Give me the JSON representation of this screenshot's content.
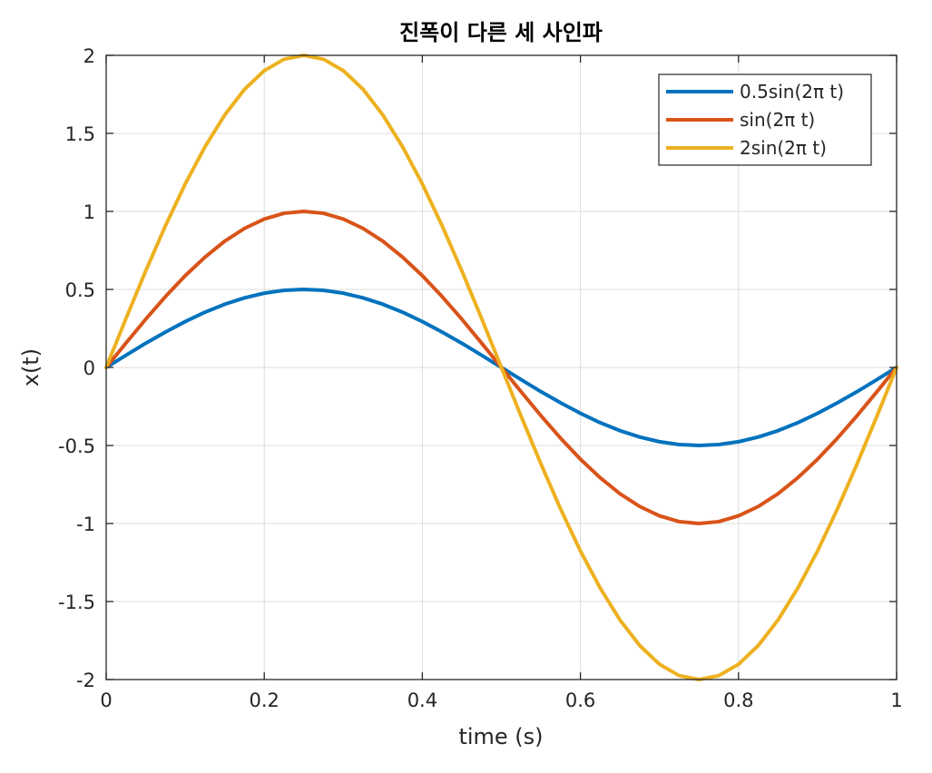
{
  "chart_data": {
    "type": "line",
    "title": "진폭이 다른 세 사인파",
    "xlabel": "time (s)",
    "ylabel": "x(t)",
    "xlim": [
      0,
      1
    ],
    "ylim": [
      -2,
      2
    ],
    "xticks": [
      0,
      0.2,
      0.4,
      0.6,
      0.8,
      1
    ],
    "xtick_labels": [
      "0",
      "0.2",
      "0.4",
      "0.6",
      "0.8",
      "1"
    ],
    "yticks": [
      2,
      1.5,
      1,
      0.5,
      0,
      -0.5,
      -1,
      -1.5,
      -2
    ],
    "ytick_labels": [
      "2",
      "1.5",
      "1",
      "0.5",
      "0",
      "-0.5",
      "-1",
      "-1.5",
      "-2"
    ],
    "grid": true,
    "legend_position": "top-right",
    "x": [
      0,
      0.025,
      0.05,
      0.075,
      0.1,
      0.125,
      0.15,
      0.175,
      0.2,
      0.225,
      0.25,
      0.275,
      0.3,
      0.325,
      0.35,
      0.375,
      0.4,
      0.425,
      0.45,
      0.475,
      0.5,
      0.525,
      0.55,
      0.575,
      0.6,
      0.625,
      0.65,
      0.675,
      0.7,
      0.725,
      0.75,
      0.775,
      0.8,
      0.825,
      0.85,
      0.875,
      0.9,
      0.925,
      0.95,
      0.975,
      1
    ],
    "series": [
      {
        "name": "0.5sin(2π t)",
        "color": "#0072BD",
        "values": [
          0,
          0.078,
          0.155,
          0.227,
          0.294,
          0.354,
          0.405,
          0.446,
          0.476,
          0.494,
          0.5,
          0.494,
          0.476,
          0.446,
          0.405,
          0.354,
          0.294,
          0.227,
          0.155,
          0.078,
          0,
          -0.078,
          -0.155,
          -0.227,
          -0.294,
          -0.354,
          -0.405,
          -0.446,
          -0.476,
          -0.494,
          -0.5,
          -0.494,
          -0.476,
          -0.446,
          -0.405,
          -0.354,
          -0.294,
          -0.227,
          -0.155,
          -0.078,
          0
        ]
      },
      {
        "name": "sin(2π t)",
        "color": "#D95319",
        "values": [
          0,
          0.156,
          0.309,
          0.454,
          0.588,
          0.707,
          0.809,
          0.891,
          0.951,
          0.988,
          1,
          0.988,
          0.951,
          0.891,
          0.809,
          0.707,
          0.588,
          0.454,
          0.309,
          0.156,
          0,
          -0.156,
          -0.309,
          -0.454,
          -0.588,
          -0.707,
          -0.809,
          -0.891,
          -0.951,
          -0.988,
          -1,
          -0.988,
          -0.951,
          -0.891,
          -0.809,
          -0.707,
          -0.588,
          -0.454,
          -0.309,
          -0.156,
          0
        ]
      },
      {
        "name": "2sin(2π t)",
        "color": "#EDB120",
        "values": [
          0,
          0.313,
          0.618,
          0.908,
          1.176,
          1.414,
          1.618,
          1.782,
          1.902,
          1.975,
          2,
          1.975,
          1.902,
          1.782,
          1.618,
          1.414,
          1.176,
          0.908,
          0.618,
          0.313,
          0,
          -0.313,
          -0.618,
          -0.908,
          -1.176,
          -1.414,
          -1.618,
          -1.782,
          -1.902,
          -1.975,
          -2,
          -1.975,
          -1.902,
          -1.782,
          -1.618,
          -1.414,
          -1.176,
          -0.908,
          -0.618,
          -0.313,
          0
        ]
      }
    ],
    "colors": {
      "axis": "#262626",
      "grid": "#dcdcdc",
      "background": "#ffffff",
      "legend_border": "#262626"
    }
  }
}
